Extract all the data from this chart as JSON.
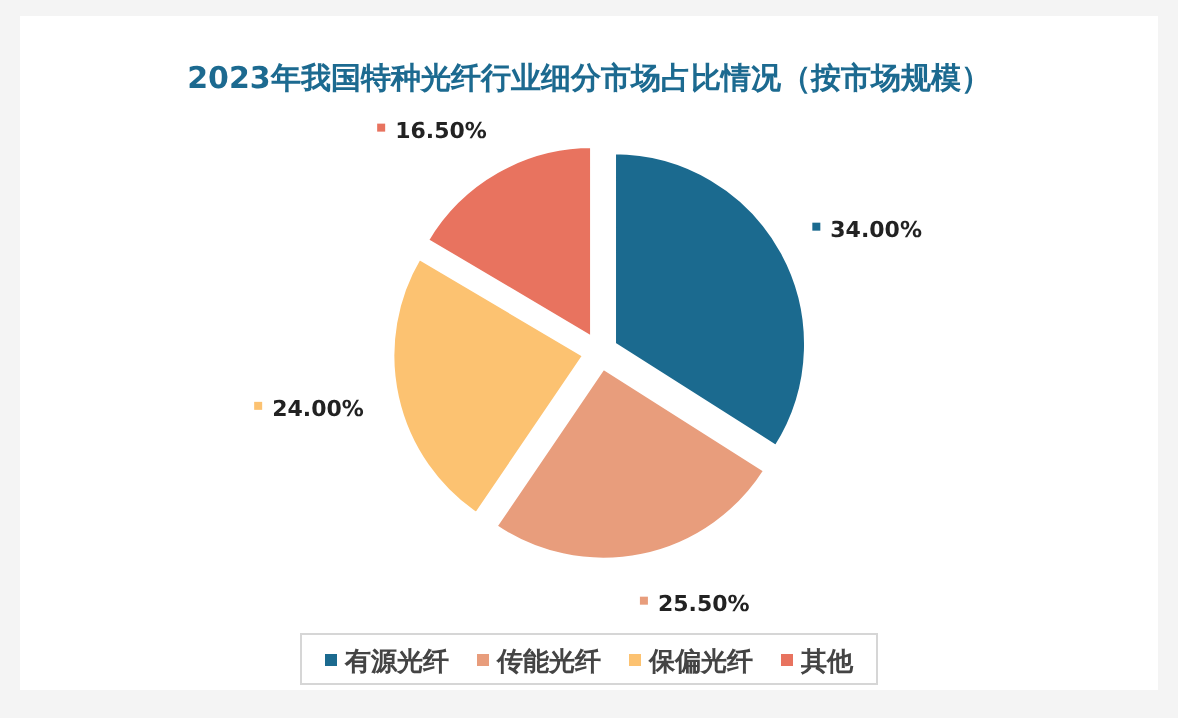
{
  "chart_data": {
    "type": "pie",
    "title": "2023年我国特种光纤行业细分市场占比情况（按市场规模）",
    "categories": [
      "有源光纤",
      "传能光纤",
      "保偏光纤",
      "其他"
    ],
    "values": [
      34,
      25.5,
      24,
      16.5
    ],
    "value_labels": [
      "34.00%",
      "25.50%",
      "24.00%",
      "16.50%"
    ],
    "colors": [
      "#1b6a8f",
      "#e89d7c",
      "#fcc271",
      "#e8735f"
    ],
    "legend": "bottom"
  }
}
